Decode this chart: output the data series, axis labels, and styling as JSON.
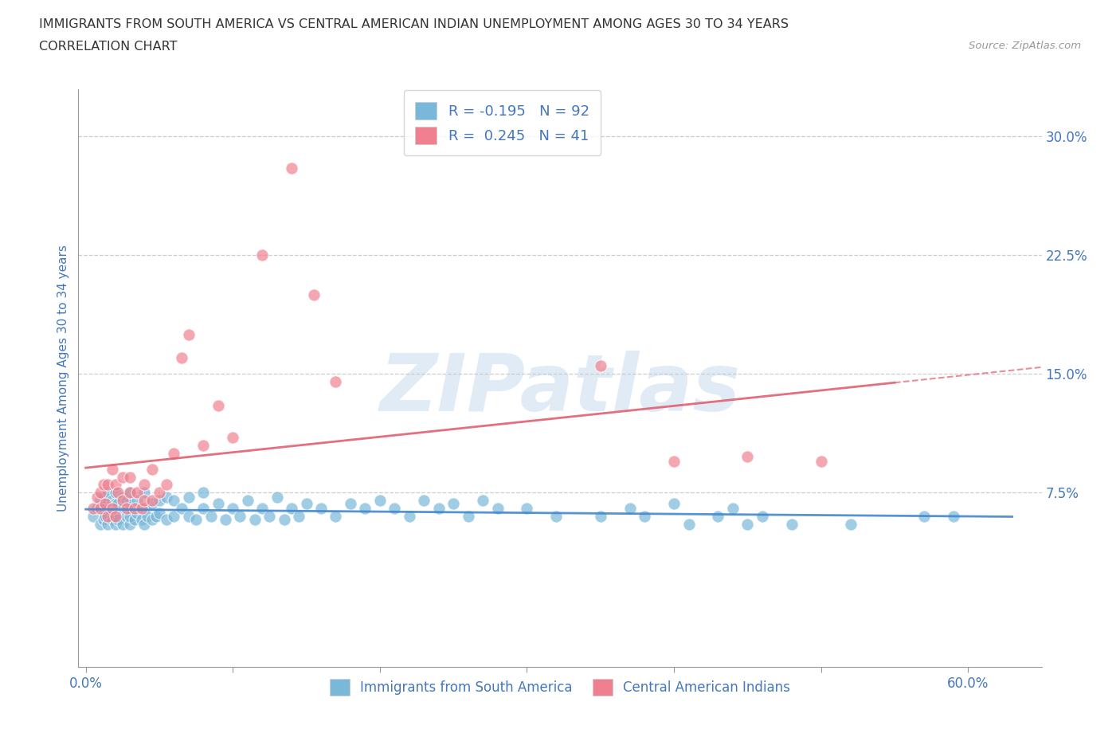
{
  "title_line1": "IMMIGRANTS FROM SOUTH AMERICA VS CENTRAL AMERICAN INDIAN UNEMPLOYMENT AMONG AGES 30 TO 34 YEARS",
  "title_line2": "CORRELATION CHART",
  "source_text": "Source: ZipAtlas.com",
  "ylabel": "Unemployment Among Ages 30 to 34 years",
  "xlim": [
    -0.005,
    0.65
  ],
  "ylim": [
    -0.035,
    0.33
  ],
  "yticks": [
    0.075,
    0.15,
    0.225,
    0.3
  ],
  "ytick_labels": [
    "7.5%",
    "15.0%",
    "22.5%",
    "30.0%"
  ],
  "xticks": [
    0.0,
    0.1,
    0.2,
    0.3,
    0.4,
    0.5,
    0.6
  ],
  "xtick_labels": [
    "0.0%",
    "",
    "",
    "",
    "",
    "",
    "60.0%"
  ],
  "blue_R": -0.195,
  "blue_N": 92,
  "pink_R": 0.245,
  "pink_N": 41,
  "blue_color": "#7ab8d9",
  "pink_color": "#f08090",
  "blue_line_color": "#4488cc",
  "pink_line_color": "#e06070",
  "grid_color": "#cccccc",
  "legend_blue_label": "Immigrants from South America",
  "legend_pink_label": "Central American Indians",
  "watermark": "ZIPatlas",
  "title_color": "#333333",
  "tick_color": "#4477bb",
  "blue_scatter_x": [
    0.005,
    0.008,
    0.01,
    0.01,
    0.012,
    0.012,
    0.013,
    0.015,
    0.015,
    0.015,
    0.018,
    0.018,
    0.02,
    0.02,
    0.02,
    0.02,
    0.022,
    0.022,
    0.025,
    0.025,
    0.025,
    0.028,
    0.028,
    0.03,
    0.03,
    0.03,
    0.03,
    0.033,
    0.035,
    0.035,
    0.038,
    0.04,
    0.04,
    0.04,
    0.042,
    0.045,
    0.045,
    0.048,
    0.05,
    0.05,
    0.055,
    0.055,
    0.06,
    0.06,
    0.065,
    0.07,
    0.07,
    0.075,
    0.08,
    0.08,
    0.085,
    0.09,
    0.095,
    0.1,
    0.105,
    0.11,
    0.115,
    0.12,
    0.125,
    0.13,
    0.135,
    0.14,
    0.145,
    0.15,
    0.16,
    0.17,
    0.18,
    0.19,
    0.2,
    0.21,
    0.22,
    0.23,
    0.24,
    0.25,
    0.26,
    0.27,
    0.28,
    0.3,
    0.32,
    0.35,
    0.37,
    0.38,
    0.4,
    0.41,
    0.43,
    0.44,
    0.45,
    0.46,
    0.48,
    0.52,
    0.57,
    0.59
  ],
  "blue_scatter_y": [
    0.06,
    0.065,
    0.055,
    0.07,
    0.058,
    0.072,
    0.06,
    0.055,
    0.065,
    0.075,
    0.058,
    0.07,
    0.055,
    0.06,
    0.068,
    0.075,
    0.058,
    0.068,
    0.055,
    0.065,
    0.072,
    0.06,
    0.07,
    0.055,
    0.06,
    0.068,
    0.075,
    0.058,
    0.062,
    0.07,
    0.058,
    0.055,
    0.065,
    0.075,
    0.06,
    0.058,
    0.068,
    0.06,
    0.062,
    0.07,
    0.058,
    0.072,
    0.06,
    0.07,
    0.065,
    0.06,
    0.072,
    0.058,
    0.065,
    0.075,
    0.06,
    0.068,
    0.058,
    0.065,
    0.06,
    0.07,
    0.058,
    0.065,
    0.06,
    0.072,
    0.058,
    0.065,
    0.06,
    0.068,
    0.065,
    0.06,
    0.068,
    0.065,
    0.07,
    0.065,
    0.06,
    0.07,
    0.065,
    0.068,
    0.06,
    0.07,
    0.065,
    0.065,
    0.06,
    0.06,
    0.065,
    0.06,
    0.068,
    0.055,
    0.06,
    0.065,
    0.055,
    0.06,
    0.055,
    0.055,
    0.06,
    0.06
  ],
  "pink_scatter_x": [
    0.005,
    0.008,
    0.01,
    0.01,
    0.012,
    0.013,
    0.015,
    0.015,
    0.018,
    0.018,
    0.02,
    0.02,
    0.022,
    0.025,
    0.025,
    0.028,
    0.03,
    0.03,
    0.033,
    0.035,
    0.038,
    0.04,
    0.04,
    0.045,
    0.045,
    0.05,
    0.055,
    0.06,
    0.065,
    0.07,
    0.08,
    0.09,
    0.1,
    0.12,
    0.14,
    0.155,
    0.17,
    0.35,
    0.4,
    0.45,
    0.5
  ],
  "pink_scatter_y": [
    0.065,
    0.072,
    0.065,
    0.075,
    0.08,
    0.068,
    0.06,
    0.08,
    0.065,
    0.09,
    0.06,
    0.08,
    0.075,
    0.07,
    0.085,
    0.065,
    0.075,
    0.085,
    0.065,
    0.075,
    0.065,
    0.07,
    0.08,
    0.07,
    0.09,
    0.075,
    0.08,
    0.1,
    0.16,
    0.175,
    0.105,
    0.13,
    0.11,
    0.225,
    0.28,
    0.2,
    0.145,
    0.155,
    0.095,
    0.098,
    0.095
  ]
}
